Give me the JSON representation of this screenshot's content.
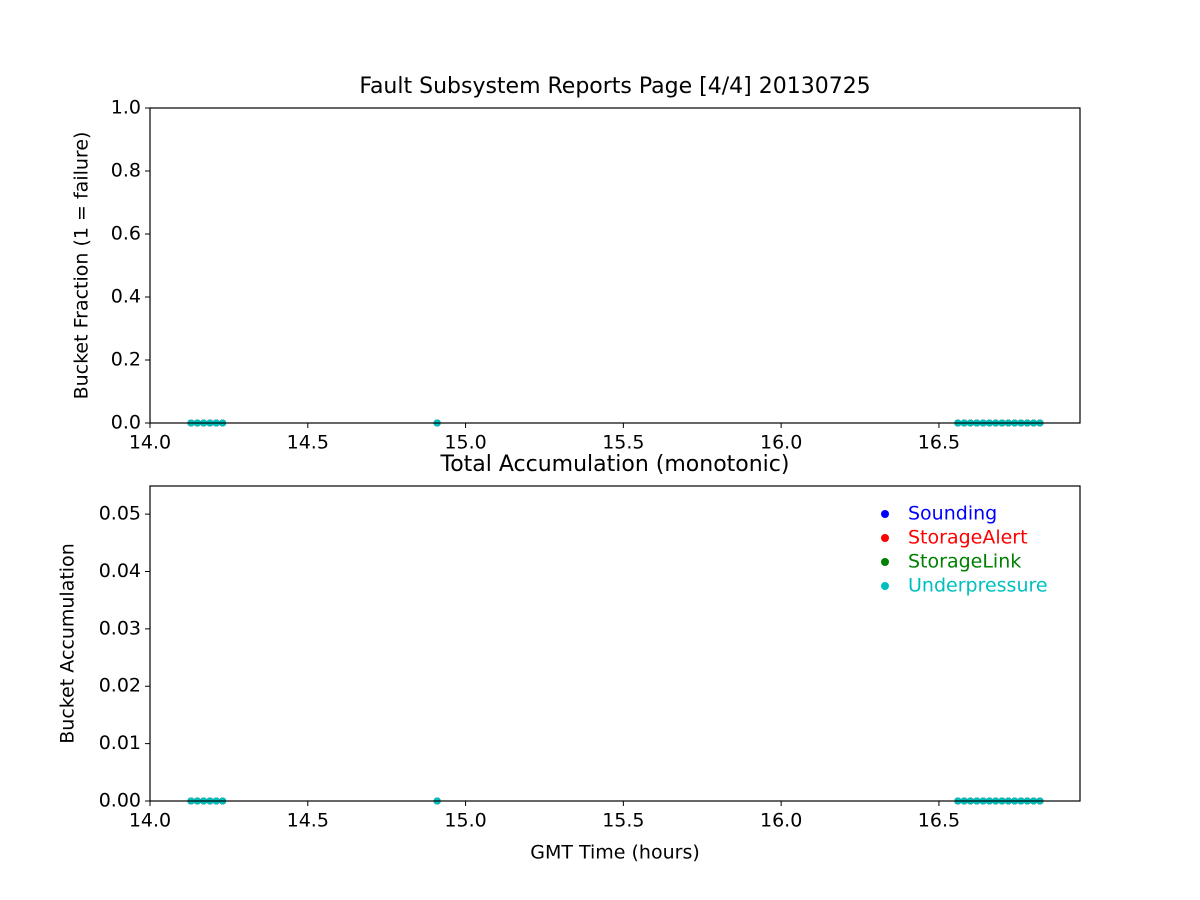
{
  "chart_data": [
    {
      "type": "scatter",
      "title": "Fault Subsystem Reports Page [4/4] 20130725",
      "y_label": "Bucket Fraction (1 = failure)",
      "x": [
        14.13,
        14.15,
        14.17,
        14.19,
        14.21,
        14.23,
        14.91,
        16.56,
        16.58,
        16.6,
        16.62,
        16.64,
        16.66,
        16.68,
        16.7,
        16.72,
        16.74,
        16.76,
        16.78,
        16.8,
        16.82
      ],
      "series": [
        {
          "color": "#0000ff",
          "values": [
            0,
            0,
            0,
            0,
            0,
            0,
            0,
            0,
            0,
            0,
            0,
            0,
            0,
            0,
            0,
            0,
            0,
            0,
            0,
            0,
            0
          ]
        },
        {
          "color": "#ff0000",
          "values": [
            0,
            0,
            0,
            0,
            0,
            0,
            0,
            0,
            0,
            0,
            0,
            0,
            0,
            0,
            0,
            0,
            0,
            0,
            0,
            0,
            0
          ]
        },
        {
          "color": "#008000",
          "values": [
            0,
            0,
            0,
            0,
            0,
            0,
            0,
            0,
            0,
            0,
            0,
            0,
            0,
            0,
            0,
            0,
            0,
            0,
            0,
            0,
            0
          ]
        },
        {
          "color": "#00bfbf",
          "values": [
            0,
            0,
            0,
            0,
            0,
            0,
            0,
            0,
            0,
            0,
            0,
            0,
            0,
            0,
            0,
            0,
            0,
            0,
            0,
            0,
            0
          ]
        }
      ],
      "xlim": [
        14.0,
        16.947
      ],
      "xticks": [
        {
          "value": 14.0,
          "label": "14.0"
        },
        14.5,
        {
          "value": 15.0,
          "label": "15.0"
        },
        15.5,
        {
          "value": 16.0,
          "label": "16.0"
        },
        16.5
      ],
      "ylim": [
        0,
        1
      ],
      "yticks": [
        {
          "value": 0,
          "label": "0.0"
        },
        0.2,
        0.4,
        0.6,
        0.8,
        {
          "value": 1,
          "label": "1.0"
        }
      ]
    },
    {
      "type": "scatter",
      "title": "Total Accumulation (monotonic)",
      "x_label": "GMT Time (hours)",
      "y_label": "Bucket Accumulation",
      "x": [
        14.13,
        14.15,
        14.17,
        14.19,
        14.21,
        14.23,
        14.91,
        16.56,
        16.58,
        16.6,
        16.62,
        16.64,
        16.66,
        16.68,
        16.7,
        16.72,
        16.74,
        16.76,
        16.78,
        16.8,
        16.82
      ],
      "series": [
        {
          "name": "Sounding",
          "color": "#0000ff",
          "values": [
            0,
            0,
            0,
            0,
            0,
            0,
            0,
            0,
            0,
            0,
            0,
            0,
            0,
            0,
            0,
            0,
            0,
            0,
            0,
            0,
            0
          ]
        },
        {
          "name": "StorageAlert",
          "color": "#ff0000",
          "values": [
            0,
            0,
            0,
            0,
            0,
            0,
            0,
            0,
            0,
            0,
            0,
            0,
            0,
            0,
            0,
            0,
            0,
            0,
            0,
            0,
            0
          ]
        },
        {
          "name": "StorageLink",
          "color": "#008000",
          "values": [
            0,
            0,
            0,
            0,
            0,
            0,
            0,
            0,
            0,
            0,
            0,
            0,
            0,
            0,
            0,
            0,
            0,
            0,
            0,
            0,
            0
          ]
        },
        {
          "name": "Underpressure",
          "color": "#00bfbf",
          "values": [
            0,
            0,
            0,
            0,
            0,
            0,
            0,
            0,
            0,
            0,
            0,
            0,
            0,
            0,
            0,
            0,
            0,
            0,
            0,
            0,
            0
          ]
        }
      ],
      "xlim": [
        14.0,
        16.947
      ],
      "xticks": [
        {
          "value": 14.0,
          "label": "14.0"
        },
        14.5,
        {
          "value": 15.0,
          "label": "15.0"
        },
        15.5,
        {
          "value": 16.0,
          "label": "16.0"
        },
        16.5
      ],
      "ylim": [
        0,
        0.0549
      ],
      "yticks": [
        {
          "value": 0,
          "label": "0.00"
        },
        {
          "value": 0.01,
          "label": "0.01"
        },
        {
          "value": 0.02,
          "label": "0.02"
        },
        {
          "value": 0.03,
          "label": "0.03"
        },
        {
          "value": 0.04,
          "label": "0.04"
        },
        {
          "value": 0.05,
          "label": "0.05"
        }
      ],
      "legend": "upper right"
    }
  ]
}
